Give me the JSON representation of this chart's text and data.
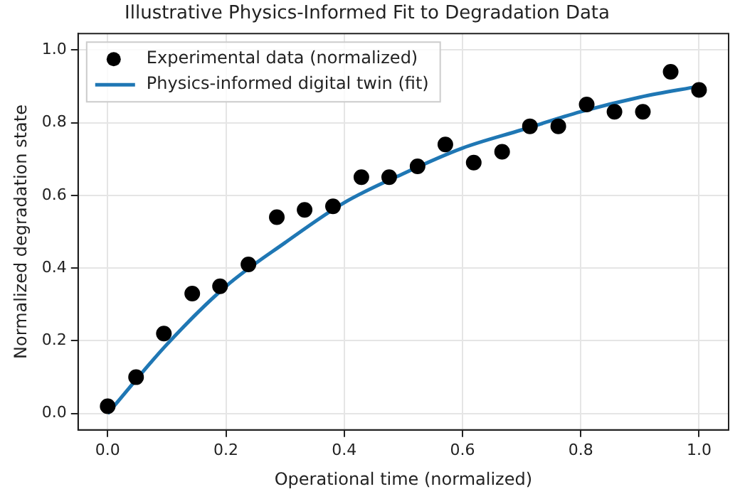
{
  "chart_data": {
    "type": "scatter",
    "title": "Illustrative Physics-Informed Fit to Degradation Data",
    "xlabel": "Operational time (normalized)",
    "ylabel": "Normalized degradation state",
    "x": [
      0,
      0.048,
      0.095,
      0.143,
      0.19,
      0.238,
      0.286,
      0.333,
      0.381,
      0.429,
      0.476,
      0.524,
      0.571,
      0.619,
      0.667,
      0.714,
      0.762,
      0.81,
      0.857,
      0.905,
      0.952,
      1.0
    ],
    "series": [
      {
        "name": "Experimental data (normalized)",
        "type": "scatter",
        "color": "#000000",
        "marker": "circle",
        "values": [
          0.02,
          0.1,
          0.22,
          0.33,
          0.35,
          0.41,
          0.54,
          0.56,
          0.57,
          0.65,
          0.65,
          0.68,
          0.74,
          0.69,
          0.72,
          0.79,
          0.79,
          0.85,
          0.83,
          0.83,
          0.94,
          0.89
        ]
      },
      {
        "name": "Physics-informed digital twin (fit)",
        "type": "line",
        "color": "#1f77b4",
        "marker": "none",
        "line_style": "solid",
        "x": [
          0,
          0.1,
          0.2,
          0.3,
          0.4,
          0.5,
          0.6,
          0.7,
          0.8,
          0.9,
          1.0
        ],
        "values": [
          0.0,
          0.19,
          0.35,
          0.47,
          0.58,
          0.66,
          0.73,
          0.78,
          0.83,
          0.87,
          0.9
        ]
      }
    ],
    "xlim": [
      -0.05,
      1.05
    ],
    "xticks": [
      {
        "value": 0,
        "label": "0.0"
      },
      0.2,
      0.4,
      0.6,
      0.8,
      {
        "value": 1,
        "label": "1.0"
      }
    ],
    "ylim": [
      -0.045,
      1.045
    ],
    "yticks": [
      {
        "value": 0,
        "label": "0.0"
      },
      0.2,
      0.4,
      0.6,
      0.8,
      {
        "value": 1,
        "label": "1.0"
      }
    ],
    "grid": true,
    "legend": "top left"
  }
}
